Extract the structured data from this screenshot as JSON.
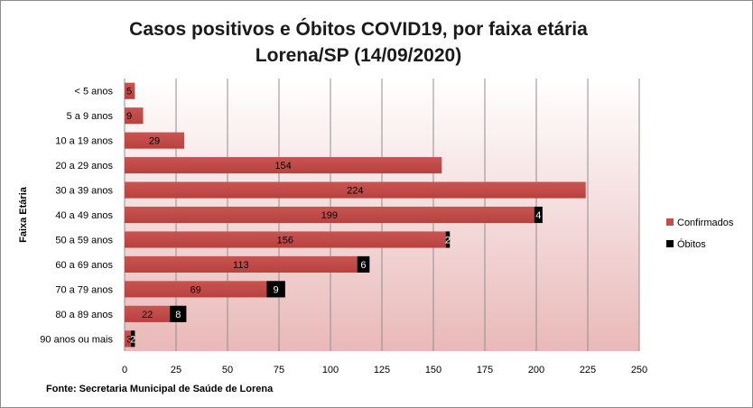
{
  "chart_data": {
    "type": "bar",
    "orientation": "horizontal",
    "stacked": true,
    "title_lines": [
      "Casos positivos e Óbitos COVID19, por faixa etária",
      "Lorena/SP (14/09/2020)"
    ],
    "ylabel": "Faixa Etária",
    "xlabel": "",
    "categories": [
      "< 5 anos",
      "5 a 9 anos",
      "10 a 19 anos",
      "20 a 29 anos",
      "30 a 39 anos",
      "40 a 49 anos",
      "50 a 59 anos",
      "60 a 69 anos",
      "70 a 79 anos",
      "80 a 89 anos",
      "90 anos ou mais"
    ],
    "series": [
      {
        "name": "Confirmados",
        "color": "#c0504d",
        "values": [
          5,
          9,
          29,
          154,
          224,
          199,
          156,
          113,
          69,
          22,
          3
        ]
      },
      {
        "name": "Óbitos",
        "color": "#000000",
        "values": [
          0,
          0,
          0,
          0,
          0,
          4,
          2,
          6,
          9,
          8,
          2
        ]
      }
    ],
    "data_labels": {
      "Confirmados": [
        "5",
        "9",
        "29",
        "154",
        "224",
        "199",
        "156",
        "113",
        "69",
        "22",
        "3"
      ],
      "Óbitos": [
        "",
        "",
        "",
        "",
        "",
        "4",
        "2",
        "6",
        "9",
        "8",
        "2"
      ]
    },
    "xlim": [
      0,
      250
    ],
    "xticks": [
      0,
      25,
      50,
      75,
      100,
      125,
      150,
      175,
      200,
      225,
      250
    ],
    "grid": true,
    "legend_position": "right",
    "source": "Fonte: Secretaria Municipal  de Saúde de Lorena"
  }
}
